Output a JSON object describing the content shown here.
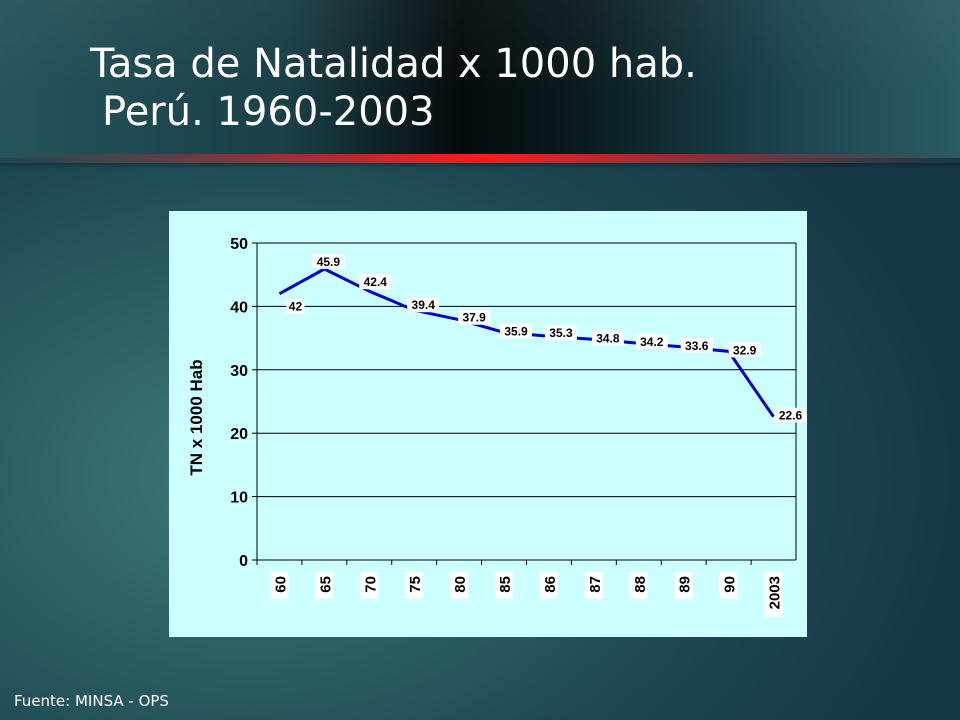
{
  "slide": {
    "title_line1": "Tasa de Natalidad x 1000 hab.",
    "title_line2": "Perú. 1960-2003",
    "source": "Fuente: MINSA - OPS"
  },
  "colors": {
    "plot_background": "#ccffff",
    "line": "#0000cc",
    "divider": "#ff1a1a"
  },
  "chart_data": {
    "type": "line",
    "title": "",
    "xlabel": "",
    "ylabel": "TN x 1000 Hab",
    "categories": [
      "60",
      "65",
      "70",
      "75",
      "80",
      "85",
      "86",
      "87",
      "88",
      "89",
      "90",
      "2003"
    ],
    "series": [
      {
        "values": [
          42,
          45.9,
          42.4,
          39.4,
          37.9,
          35.9,
          35.3,
          34.8,
          34.2,
          33.6,
          32.9,
          22.6
        ],
        "labels": [
          "42",
          "45.9",
          "42.4",
          "39.4",
          "37.9",
          "35.9",
          "35.3",
          "34.8",
          "34.2",
          "33.6",
          "32.9",
          "22.6"
        ]
      }
    ],
    "ylim": [
      0,
      50
    ],
    "yticks": [
      "0",
      "10",
      "20",
      "30",
      "40",
      "50"
    ],
    "grid": "horizontal",
    "legend": "none"
  }
}
